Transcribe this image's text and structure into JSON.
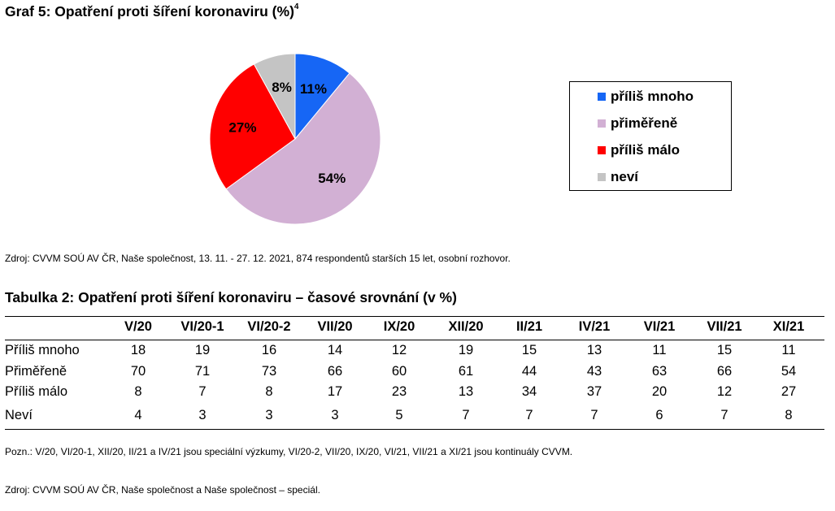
{
  "graf": {
    "title": "Graf 5: Opatření proti šíření koronaviru (%)",
    "footnote_mark": "4"
  },
  "chart_data": {
    "type": "pie",
    "categories": [
      "příliš mnoho",
      "přiměřeně",
      "příliš málo",
      "neví"
    ],
    "values": [
      11,
      54,
      27,
      8
    ],
    "labels": [
      "11%",
      "54%",
      "27%",
      "8%"
    ],
    "colors": [
      "#1666f5",
      "#d2b0d4",
      "#ff0000",
      "#c4c4c4"
    ],
    "legend_position": "right"
  },
  "legend": {
    "items": [
      {
        "label": "příliš mnoho",
        "color": "#1666f5"
      },
      {
        "label": "přiměřeně",
        "color": "#d2b0d4"
      },
      {
        "label": "příliš málo",
        "color": "#ff0000"
      },
      {
        "label": "neví",
        "color": "#c4c4c4"
      }
    ]
  },
  "source1": "Zdroj: CVVM SOÚ AV ČR, Naše společnost, 13. 11. - 27. 12. 2021, 874 respondentů starších 15 let, osobní rozhovor.",
  "table": {
    "title": "Tabulka 2: Opatření proti šíření koronaviru – časové srovnání (v %)",
    "columns": [
      "V/20",
      "VI/20-1",
      "VI/20-2",
      "VII/20",
      "IX/20",
      "XII/20",
      "II/21",
      "IV/21",
      "VI/21",
      "VII/21",
      "XI/21"
    ],
    "rows": [
      {
        "label": "Příliš mnoho",
        "values": [
          18,
          19,
          16,
          14,
          12,
          19,
          15,
          13,
          11,
          15,
          11
        ]
      },
      {
        "label": "Přiměřeně",
        "values": [
          70,
          71,
          73,
          66,
          60,
          61,
          44,
          43,
          63,
          66,
          54
        ]
      },
      {
        "label": "Příliš málo",
        "values": [
          8,
          7,
          8,
          17,
          23,
          13,
          34,
          37,
          20,
          12,
          27
        ]
      },
      {
        "label": "Neví",
        "values": [
          4,
          3,
          3,
          3,
          5,
          7,
          7,
          7,
          6,
          7,
          8
        ]
      }
    ]
  },
  "note": "Pozn.: V/20, VI/20-1, XII/20, II/21 a IV/21 jsou speciální výzkumy, VI/20-2, VII/20, IX/20, VI/21, VII/21 a XI/21 jsou kontinuály CVVM.",
  "source2": "Zdroj: CVVM SOÚ AV ČR, Naše společnost a Naše společnost – speciál."
}
